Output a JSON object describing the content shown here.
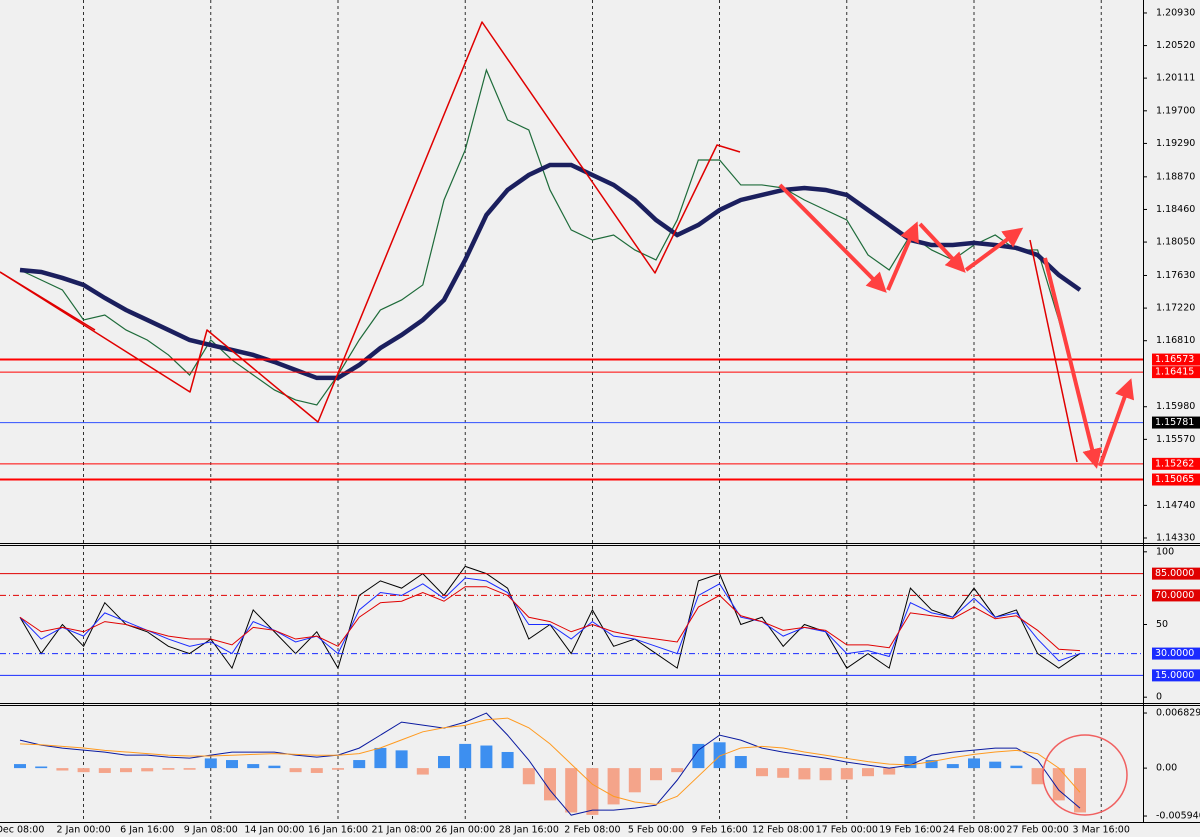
{
  "chart_data": [
    {
      "type": "line",
      "categories": [
        "Dec 08:00",
        null,
        null,
        "2 Jan 00:00",
        null,
        null,
        "6 Jan 16:00",
        null,
        null,
        "9 Jan 08:00",
        null,
        null,
        "14 Jan 00:00",
        null,
        null,
        "16 Jan 16:00",
        null,
        null,
        "21 Jan 08:00",
        null,
        null,
        "26 Jan 00:00",
        null,
        null,
        "28 Jan 16:00",
        null,
        null,
        "2 Feb 08:00",
        null,
        null,
        "5 Feb 00:00",
        null,
        null,
        "9 Feb 16:00",
        null,
        null,
        "12 Feb 08:00",
        null,
        null,
        "17 Feb 00:00",
        null,
        null,
        "19 Feb 16:00",
        null,
        null,
        "24 Feb 08:00",
        null,
        null,
        "27 Feb 00:00",
        null,
        null,
        "3 Mar 16:00"
      ],
      "series": [
        {
          "color": "#1e6b3a",
          "values": [
            1.17699,
            1.17573,
            1.17448,
            1.17071,
            1.17133,
            1.16945,
            1.16819,
            1.16631,
            1.16379,
            1.16819,
            1.16568,
            1.16379,
            1.16191,
            1.16065,
            1.16002,
            1.16379,
            1.16819,
            1.17196,
            1.17322,
            1.17511,
            1.18579,
            1.19208,
            1.20213,
            1.19585,
            1.19459,
            1.18705,
            1.18202,
            1.18076,
            1.18139,
            1.17951,
            1.17825,
            1.18328,
            1.19082,
            1.19082,
            1.18768,
            1.18768,
            1.1873,
            1.18579,
            1.18453,
            1.18328,
            1.17888,
            1.17699,
            1.18139,
            1.17951,
            1.17825,
            1.18013,
            1.18139,
            1.17951,
            1.17951,
            1.17071,
            1.16065,
            null
          ]
        },
        {
          "color": "#1b1f5e",
          "values": [
            1.17699,
            1.17674,
            1.17599,
            1.17511,
            1.17347,
            1.17196,
            1.17071,
            1.16945,
            1.16819,
            1.16756,
            1.16694,
            1.16631,
            1.16543,
            1.16442,
            1.16342,
            1.16342,
            1.16505,
            1.16719,
            1.16882,
            1.17071,
            1.17322,
            1.17825,
            1.1839,
            1.18705,
            1.18893,
            1.19019,
            1.19019,
            1.18893,
            1.18768,
            1.18579,
            1.18328,
            1.18139,
            1.18265,
            1.18453,
            1.18579,
            1.18642,
            1.18705,
            1.1873,
            1.18705,
            1.18642,
            1.18453,
            1.18265,
            1.18076,
            1.18013,
            1.18013,
            1.18039,
            1.18013,
            1.17976,
            1.17888,
            1.17636,
            1.17448,
            null
          ]
        }
      ],
      "ylim": [
        1.14267,
        1.21093
      ],
      "yticks": [
        {
          "value": 1.2093,
          "label": "1.20930"
        },
        {
          "value": 1.2052,
          "label": "1.20520"
        },
        1.20111,
        {
          "value": 1.197,
          "label": "1.19700"
        },
        {
          "value": 1.1929,
          "label": "1.19290"
        },
        {
          "value": 1.1887,
          "label": "1.18870"
        },
        {
          "value": 1.1846,
          "label": "1.18460"
        },
        {
          "value": 1.1805,
          "label": "1.18050"
        },
        {
          "value": 1.1763,
          "label": "1.17630"
        },
        {
          "value": 1.1722,
          "label": "1.17220"
        },
        {
          "value": 1.1681,
          "label": "1.16810"
        },
        {
          "value": 1.1598,
          "label": "1.15980"
        },
        {
          "value": 1.1557,
          "label": "1.15570"
        },
        {
          "value": 1.1474,
          "label": "1.14740"
        },
        {
          "value": 1.1433,
          "label": "1.14330"
        }
      ],
      "levels": [
        {
          "value": 1.16573,
          "color": "#ff0000",
          "style": "thick"
        },
        {
          "value": 1.16415,
          "color": "#ff0000",
          "style": "thin"
        },
        {
          "value": 1.15781,
          "color": "#3050ff",
          "label_color": "#000000",
          "style": "thin"
        },
        {
          "value": 1.15262,
          "color": "#ff0000",
          "style": "thin"
        },
        {
          "value": 1.15065,
          "color": "#ff0000",
          "style": "thick"
        }
      ],
      "grid": true
    },
    {
      "type": "line",
      "series": [
        {
          "color": "#000000",
          "values": [
            55,
            30,
            50,
            35,
            65,
            50,
            45,
            35,
            30,
            40,
            20,
            60,
            45,
            30,
            45,
            20,
            70,
            80,
            75,
            85,
            70,
            90,
            85,
            75,
            40,
            50,
            30,
            60,
            35,
            40,
            30,
            20,
            80,
            85,
            50,
            55,
            35,
            50,
            45,
            20,
            30,
            20,
            75,
            60,
            55,
            75,
            55,
            60,
            30,
            20,
            30,
            null
          ]
        },
        {
          "color": "#1a2bff",
          "values": [
            55,
            40,
            48,
            42,
            58,
            52,
            46,
            40,
            35,
            38,
            30,
            52,
            46,
            38,
            42,
            30,
            60,
            72,
            70,
            78,
            68,
            82,
            80,
            72,
            50,
            50,
            40,
            52,
            42,
            40,
            35,
            30,
            70,
            78,
            55,
            52,
            42,
            48,
            45,
            30,
            32,
            28,
            65,
            58,
            55,
            68,
            55,
            58,
            40,
            25,
            30,
            null
          ]
        },
        {
          "color": "#e00000",
          "values": [
            55,
            45,
            48,
            45,
            52,
            50,
            46,
            42,
            40,
            40,
            36,
            48,
            46,
            40,
            42,
            35,
            55,
            65,
            66,
            72,
            66,
            76,
            76,
            70,
            55,
            52,
            45,
            50,
            45,
            42,
            40,
            38,
            62,
            70,
            56,
            52,
            46,
            48,
            46,
            36,
            36,
            34,
            58,
            56,
            54,
            62,
            54,
            56,
            46,
            33,
            32,
            null
          ]
        }
      ],
      "ylim": [
        -4,
        104
      ],
      "yticks": [
        100,
        50,
        0
      ],
      "levels": [
        {
          "value": 85,
          "label": "85.0000",
          "color": "#e00000",
          "style": "solid"
        },
        {
          "value": 70,
          "label": "70.0000",
          "color": "#e00000",
          "style": "dashdot"
        },
        {
          "value": 30,
          "label": "30.0000",
          "color": "#1a2bff",
          "style": "dashdot"
        },
        {
          "value": 15,
          "label": "15.0000",
          "color": "#1a2bff",
          "style": "solid"
        }
      ]
    },
    {
      "type": "macd",
      "histogram": {
        "color_positive": "#3d8ff0",
        "color_negative": "#f4a48a",
        "values": [
          0.0005,
          0.0002,
          -0.0003,
          -0.0005,
          -0.0006,
          -0.0005,
          -0.0004,
          -0.0002,
          -0.0002,
          0.0012,
          0.001,
          0.0005,
          0.0003,
          -0.0005,
          -0.0006,
          -0.0002,
          0.001,
          0.0025,
          0.0022,
          -0.0008,
          0.0015,
          0.003,
          0.0028,
          0.002,
          -0.002,
          -0.004,
          -0.0055,
          -0.0058,
          -0.0045,
          -0.003,
          -0.0015,
          -0.0005,
          0.003,
          0.0032,
          0.0015,
          -0.001,
          -0.0012,
          -0.0014,
          -0.0015,
          -0.0014,
          -0.001,
          -0.0008,
          0.0015,
          0.001,
          0.0005,
          0.0012,
          0.0008,
          0.0003,
          -0.002,
          -0.004,
          -0.0055,
          null
        ]
      },
      "series": [
        {
          "color": "#0a1aa0",
          "values": [
            0.00347,
            0.00285,
            0.00248,
            0.00223,
            0.00198,
            0.00161,
            0.00161,
            0.00136,
            0.00124,
            0.00161,
            0.00198,
            0.00198,
            0.00198,
            0.00161,
            0.00136,
            0.00161,
            0.00248,
            0.00409,
            0.0057,
            0.00533,
            0.00496,
            0.0057,
            0.00682,
            0.00409,
            0.00099,
            -0.00273,
            -0.00583,
            -0.00521,
            -0.00521,
            -0.00496,
            -0.00459,
            -0.00149,
            0.00223,
            0.00409,
            0.00347,
            0.00248,
            0.00198,
            0.00161,
            0.00124,
            0.00074,
            0.00037,
            0,
            0.00037,
            0.00161,
            0.00198,
            0.00223,
            0.00248,
            0.00248,
            0.00099,
            -0.00273,
            -0.00496,
            null
          ]
        },
        {
          "color": "#ff9a1f",
          "values": [
            0.003,
            0.0029,
            0.0027,
            0.0025,
            0.0022,
            0.002,
            0.0018,
            0.0016,
            0.0015,
            0.0015,
            0.0016,
            0.0017,
            0.0018,
            0.0017,
            0.0016,
            0.0016,
            0.0018,
            0.0025,
            0.0035,
            0.0045,
            0.005,
            0.0053,
            0.006,
            0.0062,
            0.005,
            0.003,
            0.0005,
            -0.002,
            -0.0035,
            -0.0042,
            -0.0045,
            -0.0035,
            -0.001,
            0.0015,
            0.0025,
            0.0027,
            0.0025,
            0.002,
            0.0016,
            0.0012,
            0.0008,
            0.0005,
            0.0004,
            0.0008,
            0.0013,
            0.0017,
            0.002,
            0.0022,
            0.0018,
            0,
            -0.003,
            null
          ]
        }
      ],
      "ylim": [
        -0.00668,
        0.0077
      ],
      "yticks": [
        0.0068298,
        {
          "value": 0,
          "label": "0.00"
        },
        {
          "value": -0.00594,
          "label": "-0.005940"
        }
      ]
    }
  ]
}
